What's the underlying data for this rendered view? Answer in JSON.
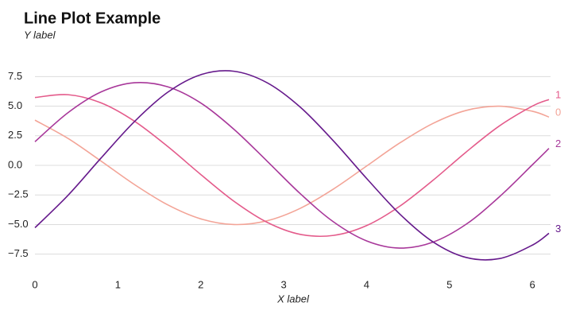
{
  "chart_data": {
    "type": "line",
    "title": "Line Plot Example",
    "ylabel": "Y label",
    "xlabel": "X label",
    "x": [
      0,
      0.4,
      0.8,
      1.2,
      1.6,
      2.0,
      2.4,
      2.8,
      3.2,
      3.6,
      4.0,
      4.4,
      4.8,
      5.2,
      5.6,
      6.0,
      6.2
    ],
    "series": [
      {
        "name": "0",
        "color": "#f3a497",
        "values": [
          3.82,
          2.27,
          0.35,
          -1.62,
          -3.33,
          -4.52,
          -5.0,
          -4.68,
          -3.63,
          -2.0,
          -0.06,
          1.89,
          3.54,
          4.64,
          5.0,
          4.57,
          4.08
        ]
      },
      {
        "name": "1",
        "color": "#e45b8b",
        "values": [
          5.73,
          5.97,
          5.27,
          3.73,
          1.6,
          -0.77,
          -3.03,
          -4.81,
          -5.83,
          -5.92,
          -5.09,
          -3.45,
          -1.27,
          1.12,
          3.32,
          5.01,
          5.56
        ]
      },
      {
        "name": "2",
        "color": "#a8389a",
        "values": [
          2.0,
          4.46,
          6.21,
          6.98,
          6.64,
          5.27,
          3.05,
          0.36,
          -2.39,
          -4.77,
          -6.38,
          -6.99,
          -6.49,
          -4.98,
          -2.67,
          0.05,
          1.43
        ]
      },
      {
        "name": "3",
        "color": "#661a8c",
        "values": [
          -5.27,
          -2.52,
          0.64,
          3.7,
          6.17,
          7.66,
          7.95,
          6.98,
          4.92,
          2.07,
          -1.1,
          -4.11,
          -6.46,
          -7.78,
          -7.88,
          -6.74,
          -5.74
        ]
      }
    ],
    "xlim": [
      0,
      6.2
    ],
    "ylim": [
      -9,
      9
    ],
    "xticks": [
      0,
      1,
      2,
      3,
      4,
      5,
      6
    ],
    "yticks": [
      {
        "value": -7.5,
        "label": "−7.5"
      },
      {
        "value": -5,
        "label": "−5.0"
      },
      {
        "value": -2.5,
        "label": "−2.5"
      },
      {
        "value": 0,
        "label": "0.0"
      },
      2.5,
      {
        "value": 5,
        "label": "5.0"
      },
      7.5
    ],
    "grid": true
  }
}
